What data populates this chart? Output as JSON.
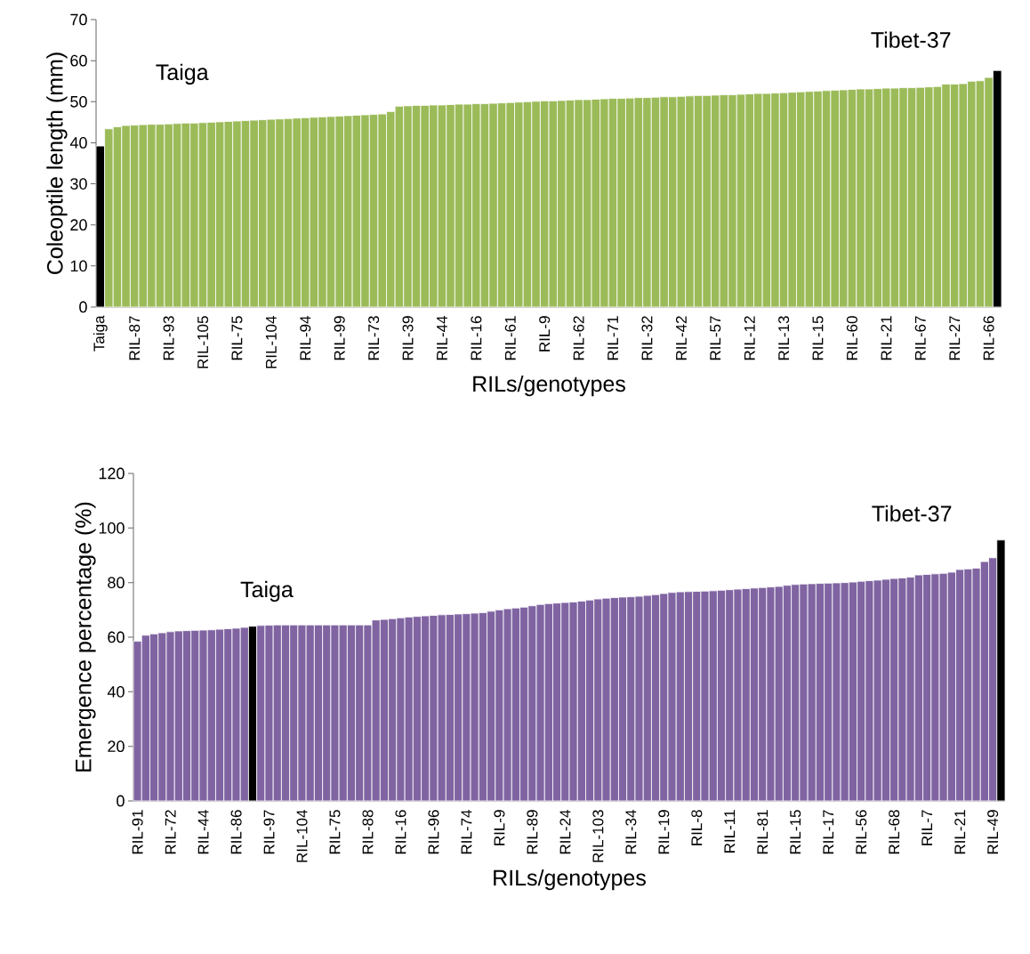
{
  "chart_data": [
    {
      "type": "bar",
      "xlabel": "RILs/genotypes",
      "ylabel": "Coleoptile length (mm)",
      "annotations": [
        "Taiga",
        "Tibet-37"
      ],
      "categories": [
        "Taiga",
        null,
        null,
        null,
        "RIL-87",
        null,
        null,
        null,
        "RIL-93",
        null,
        null,
        null,
        "RIL-105",
        null,
        null,
        null,
        "RIL-75",
        null,
        null,
        null,
        "RIL-104",
        null,
        null,
        null,
        "RIL-94",
        null,
        null,
        null,
        "RIL-99",
        null,
        null,
        null,
        "RIL-73",
        null,
        null,
        null,
        "RIL-39",
        null,
        null,
        null,
        "RIL-44",
        null,
        null,
        null,
        "RIL-16",
        null,
        null,
        null,
        "RIL-61",
        null,
        null,
        null,
        "RIL-9",
        null,
        null,
        null,
        "RIL-62",
        null,
        null,
        null,
        "RIL-71",
        null,
        null,
        null,
        "RIL-32",
        null,
        null,
        null,
        "RIL-42",
        null,
        null,
        null,
        "RIL-57",
        null,
        null,
        null,
        "RIL-12",
        null,
        null,
        null,
        "RIL-13",
        null,
        null,
        null,
        "RIL-15",
        null,
        null,
        null,
        "RIL-60",
        null,
        null,
        null,
        "RIL-21",
        null,
        null,
        null,
        "RIL-67",
        null,
        null,
        null,
        "RIL-27",
        null,
        null,
        null,
        "RIL-66",
        null
      ],
      "values": [
        39.2,
        43.4,
        43.9,
        44.2,
        44.3,
        44.4,
        44.5,
        44.5,
        44.6,
        44.7,
        44.8,
        44.8,
        44.9,
        45.0,
        45.1,
        45.2,
        45.3,
        45.4,
        45.5,
        45.6,
        45.7,
        45.8,
        45.9,
        46.0,
        46.1,
        46.2,
        46.3,
        46.4,
        46.5,
        46.6,
        46.7,
        46.8,
        46.9,
        47.0,
        47.6,
        48.9,
        49.0,
        49.1,
        49.1,
        49.2,
        49.2,
        49.3,
        49.4,
        49.4,
        49.5,
        49.5,
        49.6,
        49.7,
        49.8,
        49.9,
        50.0,
        50.1,
        50.2,
        50.2,
        50.3,
        50.4,
        50.5,
        50.5,
        50.6,
        50.7,
        50.8,
        50.8,
        50.9,
        51.0,
        51.0,
        51.1,
        51.2,
        51.2,
        51.3,
        51.4,
        51.5,
        51.5,
        51.6,
        51.7,
        51.7,
        51.8,
        51.9,
        52.0,
        52.0,
        52.1,
        52.2,
        52.3,
        52.4,
        52.5,
        52.6,
        52.7,
        52.8,
        52.9,
        53.0,
        53.1,
        53.1,
        53.2,
        53.3,
        53.3,
        53.4,
        53.4,
        53.5,
        53.6,
        53.7,
        54.3,
        54.3,
        54.4,
        55.0,
        55.1,
        55.9,
        57.6
      ],
      "colors": [
        "#000000",
        "#9bbb59",
        "#9bbb59",
        "#9bbb59",
        "#9bbb59",
        "#9bbb59",
        "#9bbb59",
        "#9bbb59",
        "#9bbb59",
        "#9bbb59",
        "#9bbb59",
        "#9bbb59",
        "#9bbb59",
        "#9bbb59",
        "#9bbb59",
        "#9bbb59",
        "#9bbb59",
        "#9bbb59",
        "#9bbb59",
        "#9bbb59",
        "#9bbb59",
        "#9bbb59",
        "#9bbb59",
        "#9bbb59",
        "#9bbb59",
        "#9bbb59",
        "#9bbb59",
        "#9bbb59",
        "#9bbb59",
        "#9bbb59",
        "#9bbb59",
        "#9bbb59",
        "#9bbb59",
        "#9bbb59",
        "#9bbb59",
        "#9bbb59",
        "#9bbb59",
        "#9bbb59",
        "#9bbb59",
        "#9bbb59",
        "#9bbb59",
        "#9bbb59",
        "#9bbb59",
        "#9bbb59",
        "#9bbb59",
        "#9bbb59",
        "#9bbb59",
        "#9bbb59",
        "#9bbb59",
        "#9bbb59",
        "#9bbb59",
        "#9bbb59",
        "#9bbb59",
        "#9bbb59",
        "#9bbb59",
        "#9bbb59",
        "#9bbb59",
        "#9bbb59",
        "#9bbb59",
        "#9bbb59",
        "#9bbb59",
        "#9bbb59",
        "#9bbb59",
        "#9bbb59",
        "#9bbb59",
        "#9bbb59",
        "#9bbb59",
        "#9bbb59",
        "#9bbb59",
        "#9bbb59",
        "#9bbb59",
        "#9bbb59",
        "#9bbb59",
        "#9bbb59",
        "#9bbb59",
        "#9bbb59",
        "#9bbb59",
        "#9bbb59",
        "#9bbb59",
        "#9bbb59",
        "#9bbb59",
        "#9bbb59",
        "#9bbb59",
        "#9bbb59",
        "#9bbb59",
        "#9bbb59",
        "#9bbb59",
        "#9bbb59",
        "#9bbb59",
        "#9bbb59",
        "#9bbb59",
        "#9bbb59",
        "#9bbb59",
        "#9bbb59",
        "#9bbb59",
        "#9bbb59",
        "#9bbb59",
        "#9bbb59",
        "#9bbb59",
        "#9bbb59",
        "#9bbb59",
        "#9bbb59",
        "#9bbb59",
        "#9bbb59",
        "#9bbb59",
        "#000000"
      ],
      "ylim": [
        0,
        70
      ],
      "yticks": [
        0,
        10,
        20,
        30,
        40,
        50,
        60,
        70
      ]
    },
    {
      "type": "bar",
      "xlabel": "RILs/genotypes",
      "ylabel": "Emergence percentage (%)",
      "annotations": [
        "Taiga",
        "Tibet-37"
      ],
      "categories": [
        "RIL-91",
        null,
        null,
        null,
        "RIL-72",
        null,
        null,
        null,
        "RIL-44",
        null,
        null,
        null,
        "RIL-86",
        null,
        null,
        null,
        "RIL-97",
        null,
        null,
        null,
        "RIL-104",
        null,
        null,
        null,
        "RIL-75",
        null,
        null,
        null,
        "RIL-88",
        null,
        null,
        null,
        "RIL-16",
        null,
        null,
        null,
        "RIL-96",
        null,
        null,
        null,
        "RIL-74",
        null,
        null,
        null,
        "RIL-9",
        null,
        null,
        null,
        "RIL-89",
        null,
        null,
        null,
        "RIL-24",
        null,
        null,
        null,
        "RIL-103",
        null,
        null,
        null,
        "RIL-34",
        null,
        null,
        null,
        "RIL-19",
        null,
        null,
        null,
        "RIL-8",
        null,
        null,
        null,
        "RIL-11",
        null,
        null,
        null,
        "RIL-81",
        null,
        null,
        null,
        "RIL-15",
        null,
        null,
        null,
        "RIL-17",
        null,
        null,
        null,
        "RIL-56",
        null,
        null,
        null,
        "RIL-68",
        null,
        null,
        null,
        "RIL-7",
        null,
        null,
        null,
        "RIL-21",
        null,
        null,
        null,
        "RIL-49",
        null
      ],
      "values": [
        58.5,
        60.7,
        61.2,
        61.6,
        62.0,
        62.3,
        62.4,
        62.5,
        62.6,
        62.7,
        62.9,
        63.1,
        63.3,
        63.6,
        64.0,
        64.3,
        64.4,
        64.5,
        64.5,
        64.5,
        64.5,
        64.5,
        64.5,
        64.5,
        64.5,
        64.5,
        64.5,
        64.5,
        64.5,
        66.3,
        66.5,
        66.8,
        67.1,
        67.4,
        67.6,
        67.8,
        68.0,
        68.2,
        68.3,
        68.5,
        68.6,
        68.8,
        69.0,
        69.5,
        70.0,
        70.4,
        70.7,
        71.0,
        71.5,
        72.0,
        72.3,
        72.5,
        72.7,
        72.9,
        73.2,
        73.6,
        74.0,
        74.3,
        74.5,
        74.7,
        74.8,
        75.0,
        75.3,
        75.6,
        76.0,
        76.4,
        76.6,
        76.7,
        76.8,
        76.9,
        77.0,
        77.2,
        77.4,
        77.6,
        77.8,
        78.0,
        78.2,
        78.4,
        78.6,
        79.0,
        79.3,
        79.5,
        79.6,
        79.7,
        79.8,
        79.9,
        80.0,
        80.2,
        80.5,
        80.7,
        80.9,
        81.2,
        81.5,
        81.7,
        82.0,
        82.8,
        83.0,
        83.2,
        83.4,
        83.8,
        84.8,
        85.0,
        85.3,
        87.7,
        89.1,
        95.6
      ],
      "colors": [
        "#8064a2",
        "#8064a2",
        "#8064a2",
        "#8064a2",
        "#8064a2",
        "#8064a2",
        "#8064a2",
        "#8064a2",
        "#8064a2",
        "#8064a2",
        "#8064a2",
        "#8064a2",
        "#8064a2",
        "#8064a2",
        "#000000",
        "#8064a2",
        "#8064a2",
        "#8064a2",
        "#8064a2",
        "#8064a2",
        "#8064a2",
        "#8064a2",
        "#8064a2",
        "#8064a2",
        "#8064a2",
        "#8064a2",
        "#8064a2",
        "#8064a2",
        "#8064a2",
        "#8064a2",
        "#8064a2",
        "#8064a2",
        "#8064a2",
        "#8064a2",
        "#8064a2",
        "#8064a2",
        "#8064a2",
        "#8064a2",
        "#8064a2",
        "#8064a2",
        "#8064a2",
        "#8064a2",
        "#8064a2",
        "#8064a2",
        "#8064a2",
        "#8064a2",
        "#8064a2",
        "#8064a2",
        "#8064a2",
        "#8064a2",
        "#8064a2",
        "#8064a2",
        "#8064a2",
        "#8064a2",
        "#8064a2",
        "#8064a2",
        "#8064a2",
        "#8064a2",
        "#8064a2",
        "#8064a2",
        "#8064a2",
        "#8064a2",
        "#8064a2",
        "#8064a2",
        "#8064a2",
        "#8064a2",
        "#8064a2",
        "#8064a2",
        "#8064a2",
        "#8064a2",
        "#8064a2",
        "#8064a2",
        "#8064a2",
        "#8064a2",
        "#8064a2",
        "#8064a2",
        "#8064a2",
        "#8064a2",
        "#8064a2",
        "#8064a2",
        "#8064a2",
        "#8064a2",
        "#8064a2",
        "#8064a2",
        "#8064a2",
        "#8064a2",
        "#8064a2",
        "#8064a2",
        "#8064a2",
        "#8064a2",
        "#8064a2",
        "#8064a2",
        "#8064a2",
        "#8064a2",
        "#8064a2",
        "#8064a2",
        "#8064a2",
        "#8064a2",
        "#8064a2",
        "#8064a2",
        "#8064a2",
        "#8064a2",
        "#8064a2",
        "#8064a2",
        "#8064a2",
        "#000000"
      ],
      "ylim": [
        0,
        120
      ],
      "yticks": [
        0,
        20,
        40,
        60,
        80,
        100,
        120
      ]
    }
  ]
}
